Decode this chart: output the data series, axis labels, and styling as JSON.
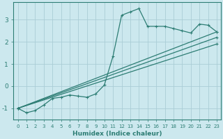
{
  "xlabel": "Humidex (Indice chaleur)",
  "xlim": [
    -0.5,
    23.5
  ],
  "ylim": [
    -1.5,
    3.8
  ],
  "background_color": "#cce8ee",
  "grid_color": "#aacdd6",
  "line_color": "#2d7d74",
  "xticks": [
    0,
    1,
    2,
    3,
    4,
    5,
    6,
    7,
    8,
    9,
    10,
    11,
    12,
    13,
    14,
    15,
    16,
    17,
    18,
    19,
    20,
    21,
    22,
    23
  ],
  "yticks": [
    -1,
    0,
    1,
    2,
    3
  ],
  "curves": [
    {
      "x": [
        0,
        1,
        2,
        3,
        4,
        5,
        6,
        7,
        8,
        9,
        10,
        11,
        12,
        13,
        14,
        15,
        16,
        17,
        18,
        19,
        20,
        21,
        22,
        23
      ],
      "y": [
        -1.0,
        -1.2,
        -1.1,
        -0.85,
        -0.55,
        -0.5,
        -0.4,
        -0.45,
        -0.5,
        -0.35,
        0.05,
        1.35,
        3.2,
        3.35,
        3.5,
        2.7,
        2.7,
        2.7,
        2.6,
        2.5,
        2.4,
        2.8,
        2.75,
        2.45
      ]
    },
    {
      "x": [
        0,
        23
      ],
      "y": [
        -1.0,
        2.45
      ]
    },
    {
      "x": [
        0,
        23
      ],
      "y": [
        -1.0,
        2.2
      ]
    },
    {
      "x": [
        0,
        23
      ],
      "y": [
        -1.0,
        1.9
      ]
    }
  ]
}
